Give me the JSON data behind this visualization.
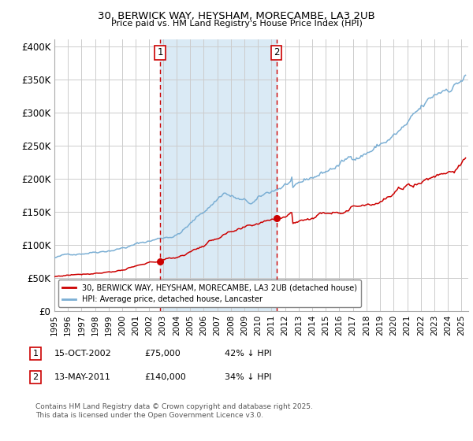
{
  "title1": "30, BERWICK WAY, HEYSHAM, MORECAMBE, LA3 2UB",
  "title2": "Price paid vs. HM Land Registry's House Price Index (HPI)",
  "background_color": "#ffffff",
  "plot_bg_color": "#ffffff",
  "grid_color": "#cccccc",
  "hpi_line_color": "#7bafd4",
  "price_line_color": "#cc0000",
  "shade_color": "#daeaf5",
  "dashed_line_color": "#cc0000",
  "sale1_date_num": 2002.79,
  "sale1_price": 75000,
  "sale2_date_num": 2011.37,
  "sale2_price": 140000,
  "xmin": 1995.0,
  "xmax": 2025.5,
  "ymin": 0,
  "ymax": 410000,
  "yticks": [
    0,
    50000,
    100000,
    150000,
    200000,
    250000,
    300000,
    350000,
    400000
  ],
  "ytick_labels": [
    "£0",
    "£50K",
    "£100K",
    "£150K",
    "£200K",
    "£250K",
    "£300K",
    "£350K",
    "£400K"
  ],
  "xticks": [
    1995,
    1996,
    1997,
    1998,
    1999,
    2000,
    2001,
    2002,
    2003,
    2004,
    2005,
    2006,
    2007,
    2008,
    2009,
    2010,
    2011,
    2012,
    2013,
    2014,
    2015,
    2016,
    2017,
    2018,
    2019,
    2020,
    2021,
    2022,
    2023,
    2024,
    2025
  ],
  "legend_label1": "30, BERWICK WAY, HEYSHAM, MORECAMBE, LA3 2UB (detached house)",
  "legend_label2": "HPI: Average price, detached house, Lancaster",
  "note1_date": "15-OCT-2002",
  "note1_price": "£75,000",
  "note1_hpi": "42% ↓ HPI",
  "note2_date": "13-MAY-2011",
  "note2_price": "£140,000",
  "note2_hpi": "34% ↓ HPI",
  "footer": "Contains HM Land Registry data © Crown copyright and database right 2025.\nThis data is licensed under the Open Government Licence v3.0."
}
